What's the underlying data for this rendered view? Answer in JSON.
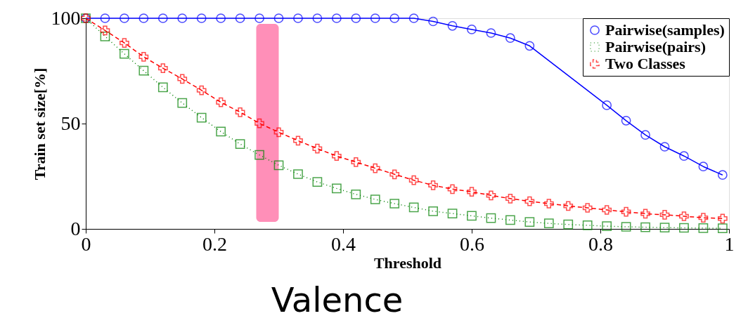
{
  "chart_data": {
    "type": "line",
    "xlabel": "Threshold",
    "ylabel": "Train set size[%]",
    "x": [
      0,
      0.03,
      0.06,
      0.09,
      0.12,
      0.15,
      0.18,
      0.21,
      0.24,
      0.27,
      0.3,
      0.33,
      0.36,
      0.39,
      0.42,
      0.45,
      0.48,
      0.51,
      0.54,
      0.57,
      0.6,
      0.63,
      0.66,
      0.69,
      0.72,
      0.75,
      0.78,
      0.81,
      0.84,
      0.87,
      0.9,
      0.93,
      0.96,
      0.99
    ],
    "series": [
      {
        "name": "Pairwise(samples)",
        "color": "#0000ff",
        "marker": "circle",
        "line_style": "solid",
        "values": [
          100,
          100,
          100,
          100,
          100,
          100,
          100,
          100,
          100,
          100,
          100,
          100,
          100,
          100,
          100,
          100,
          100,
          100,
          98.5,
          96.4,
          94.7,
          93,
          90.6,
          86.9,
          null,
          null,
          null,
          58.7,
          51.4,
          44.6,
          39,
          34.6,
          29.6,
          25.6
        ]
      },
      {
        "name": "Pairwise(pairs)",
        "color": "#008000",
        "marker": "square",
        "line_style": "dotted",
        "values": [
          100,
          91.4,
          83.1,
          75.1,
          67.2,
          59.8,
          52.8,
          46.2,
          40.3,
          35.1,
          30.2,
          26,
          22.3,
          19.2,
          16.4,
          14,
          12,
          10.2,
          8.4,
          7.3,
          6.2,
          5.1,
          4.2,
          3.3,
          2.6,
          2.1,
          1.7,
          1.3,
          1,
          0.8,
          0.6,
          0.5,
          0.4,
          0.3
        ]
      },
      {
        "name": "Two Classes",
        "color": "#ff0000",
        "marker": "cross",
        "line_style": "dashed",
        "values": [
          100,
          94.2,
          88.3,
          81.7,
          76.3,
          71.2,
          65.8,
          60.1,
          55.4,
          50.1,
          45.9,
          41.9,
          38.1,
          34.6,
          31.7,
          28.8,
          25.9,
          23.1,
          20.7,
          18.9,
          17.6,
          15.9,
          14.4,
          13.1,
          12,
          10.9,
          10,
          9,
          8.1,
          7.2,
          6.7,
          6,
          5.3,
          4.9
        ]
      }
    ],
    "xlim": [
      0,
      1
    ],
    "xticks": [
      0,
      0.2,
      0.4,
      0.6,
      0.8,
      1
    ],
    "ylim": [
      0,
      100
    ],
    "yticks": [
      0,
      50,
      100
    ],
    "bands": [
      {
        "axis": "x",
        "from": 0.265,
        "to": 0.3,
        "color": "#ff8fb8"
      }
    ],
    "grid": false,
    "legend": "top right",
    "annotations": [
      "Valence"
    ]
  }
}
